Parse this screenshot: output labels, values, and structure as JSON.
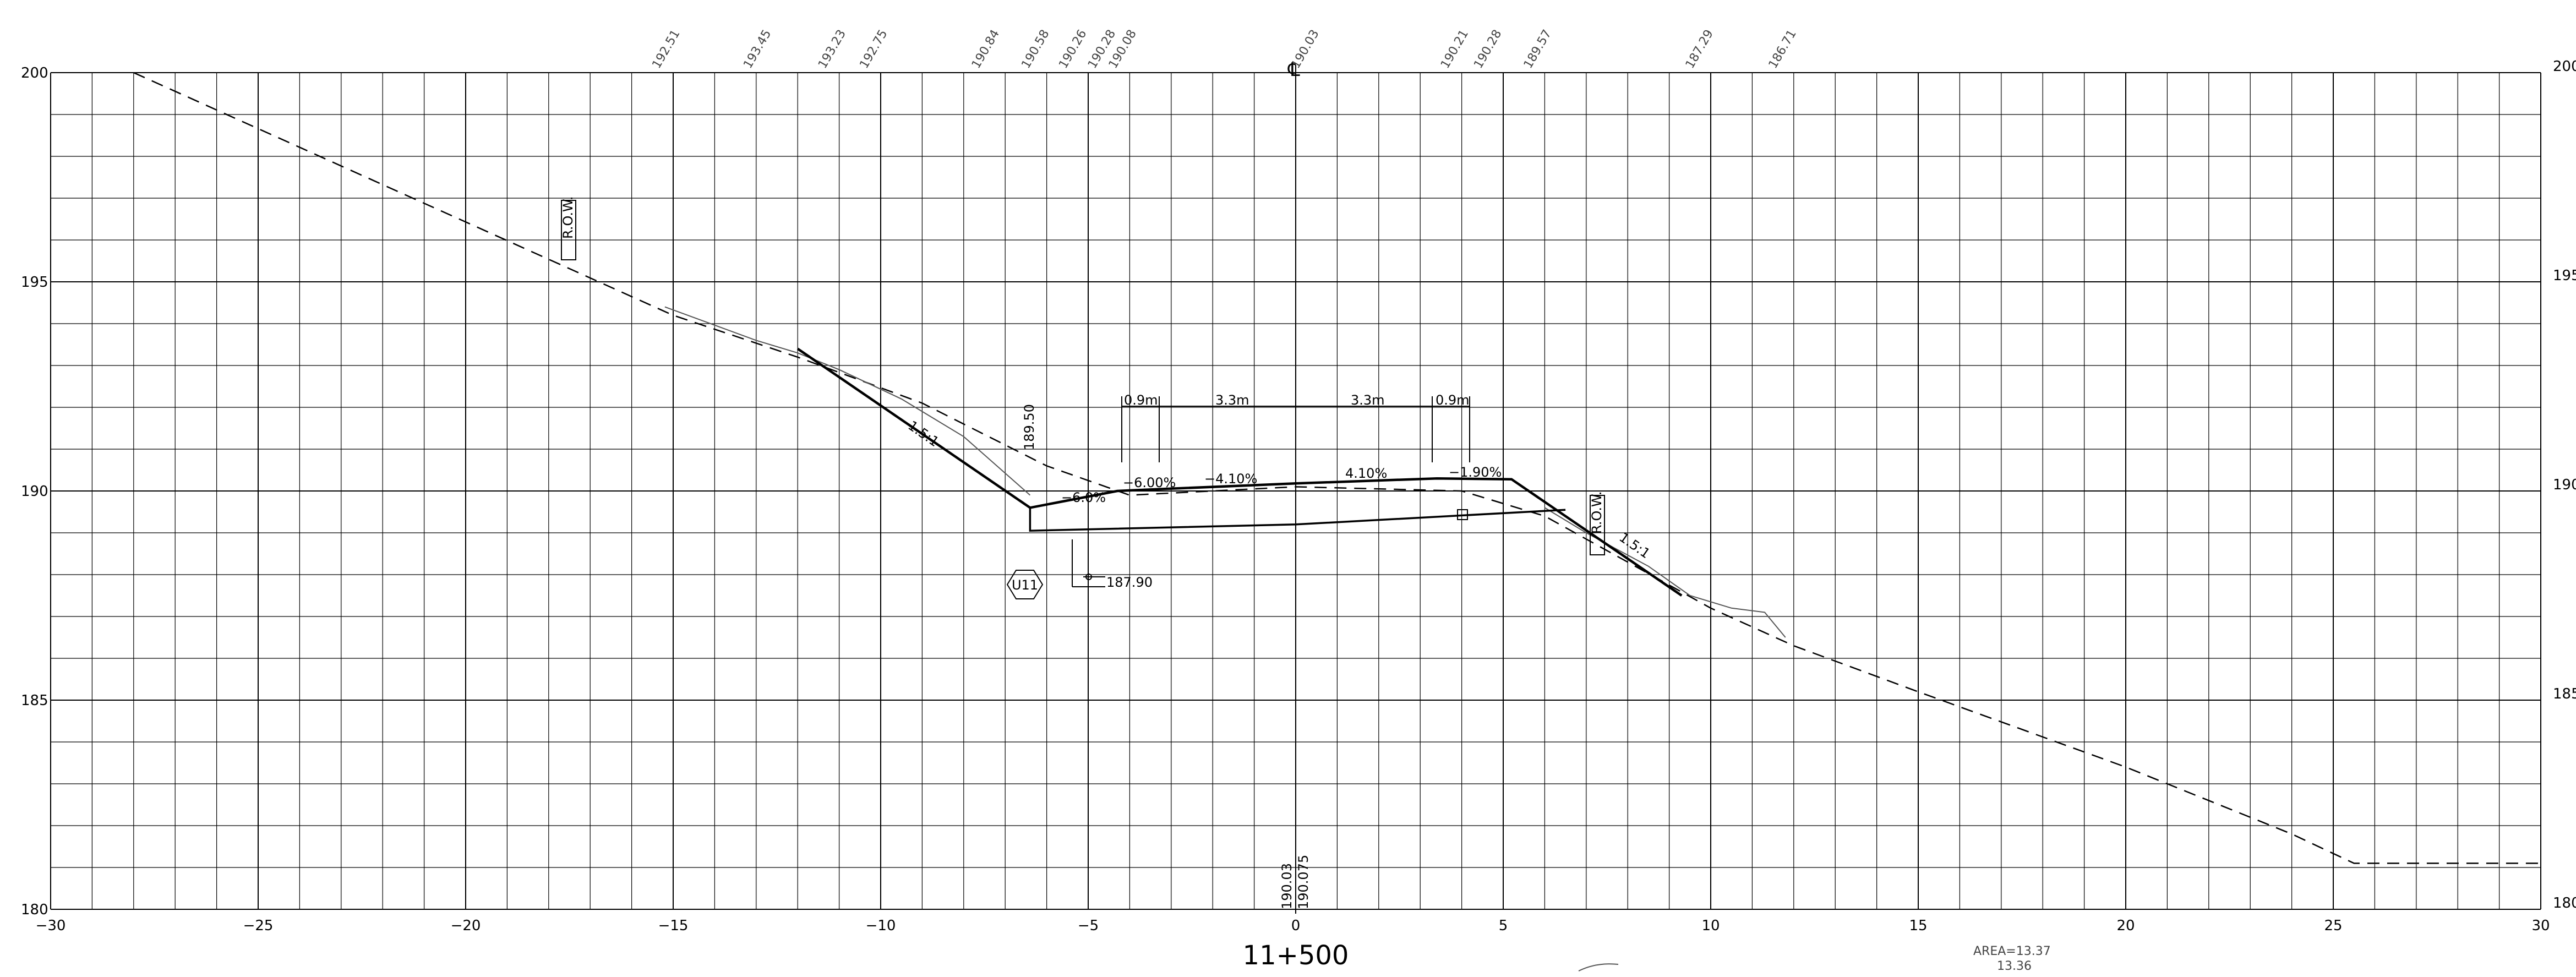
{
  "station": "11+500",
  "axes": {
    "x_ticks": [
      "−30",
      "−25",
      "−20",
      "−15",
      "−10",
      "−5",
      "0",
      "5",
      "10",
      "15",
      "20",
      "25",
      "30"
    ],
    "y_ticks_left": [
      "200",
      "195",
      "190",
      "185",
      "180"
    ],
    "y_ticks_right": [
      "200",
      "195",
      "190",
      "185",
      "180"
    ],
    "xlim": [
      -30,
      30
    ],
    "ylim": [
      180,
      200
    ],
    "grid": true
  },
  "labels": {
    "row_left": "R.O.W.",
    "row_right": "R.O.W.",
    "slope_left": "1.5:1",
    "slope_right": "1.5:1",
    "dim_shoulder_left": "0.9m",
    "dim_lane_left": "3.3m",
    "dim_lane_right": "3.3m",
    "dim_shoulder_right": "0.9m",
    "pct_shoulder_left": "−6.00%",
    "pct_lane_left": "−4.10%",
    "pct_lane_right": "4.10%",
    "pct_shoulder_right": "−1.90%",
    "ditch_pct": "−6.0%",
    "ditch_elev": "189.50",
    "invert_elev": "187.90",
    "centerline_symbol": "℄",
    "cl_elev_1": "190.03",
    "cl_elev_2": "190.075",
    "culvert_tag": "U11",
    "area_note_1": "AREA=13.37",
    "area_note_2": "13.36"
  },
  "top_annotations": [
    "192.51",
    "193.45",
    "193.23",
    "192.75",
    "190.84",
    "190.58",
    "190.26",
    "190.28",
    "190.08",
    "190.03",
    "190.21",
    "190.28",
    "189.57",
    "187.29",
    "186.71"
  ],
  "chart_data": {
    "type": "line",
    "xlabel": "",
    "ylabel": "",
    "xlim": [
      -30,
      30
    ],
    "ylim": [
      180,
      200
    ],
    "grid": true,
    "series": [
      {
        "style": "dashed",
        "x": [
          -28,
          -15,
          -12,
          -9,
          -6,
          -4,
          0,
          4,
          6,
          8,
          10,
          12,
          15,
          20,
          24,
          25.5,
          30
        ],
        "y": [
          200,
          194.2,
          193.2,
          192.1,
          190.6,
          189.9,
          190.1,
          190.0,
          189.4,
          188.3,
          187.2,
          186.3,
          185.2,
          183.4,
          181.8,
          181.1,
          181.1
        ]
      },
      {
        "style": "ground",
        "x": [
          -15.2,
          -13,
          -12,
          -11,
          -9.5,
          -8,
          -6.4
        ],
        "y": [
          194.4,
          193.6,
          193.3,
          192.9,
          192.2,
          191.3,
          189.9
        ]
      },
      {
        "style": "ground",
        "x": [
          6,
          7,
          8.5,
          9.5,
          10.5,
          11.3,
          11.8
        ],
        "y": [
          189.6,
          189.0,
          188.2,
          187.5,
          187.2,
          187.1,
          186.5
        ]
      },
      {
        "style": "design",
        "x": [
          -12,
          -6.4,
          -4.3,
          -3.4,
          0,
          3.4,
          5.2,
          9.3
        ],
        "y": [
          193.4,
          189.6,
          190.0,
          190.04,
          190.18,
          190.3,
          190.28,
          187.5
        ]
      },
      {
        "style": "subgrade",
        "x": [
          -6.4,
          -6.4,
          0,
          6.5
        ],
        "y": [
          189.6,
          189.05,
          189.2,
          189.55
        ]
      }
    ]
  }
}
